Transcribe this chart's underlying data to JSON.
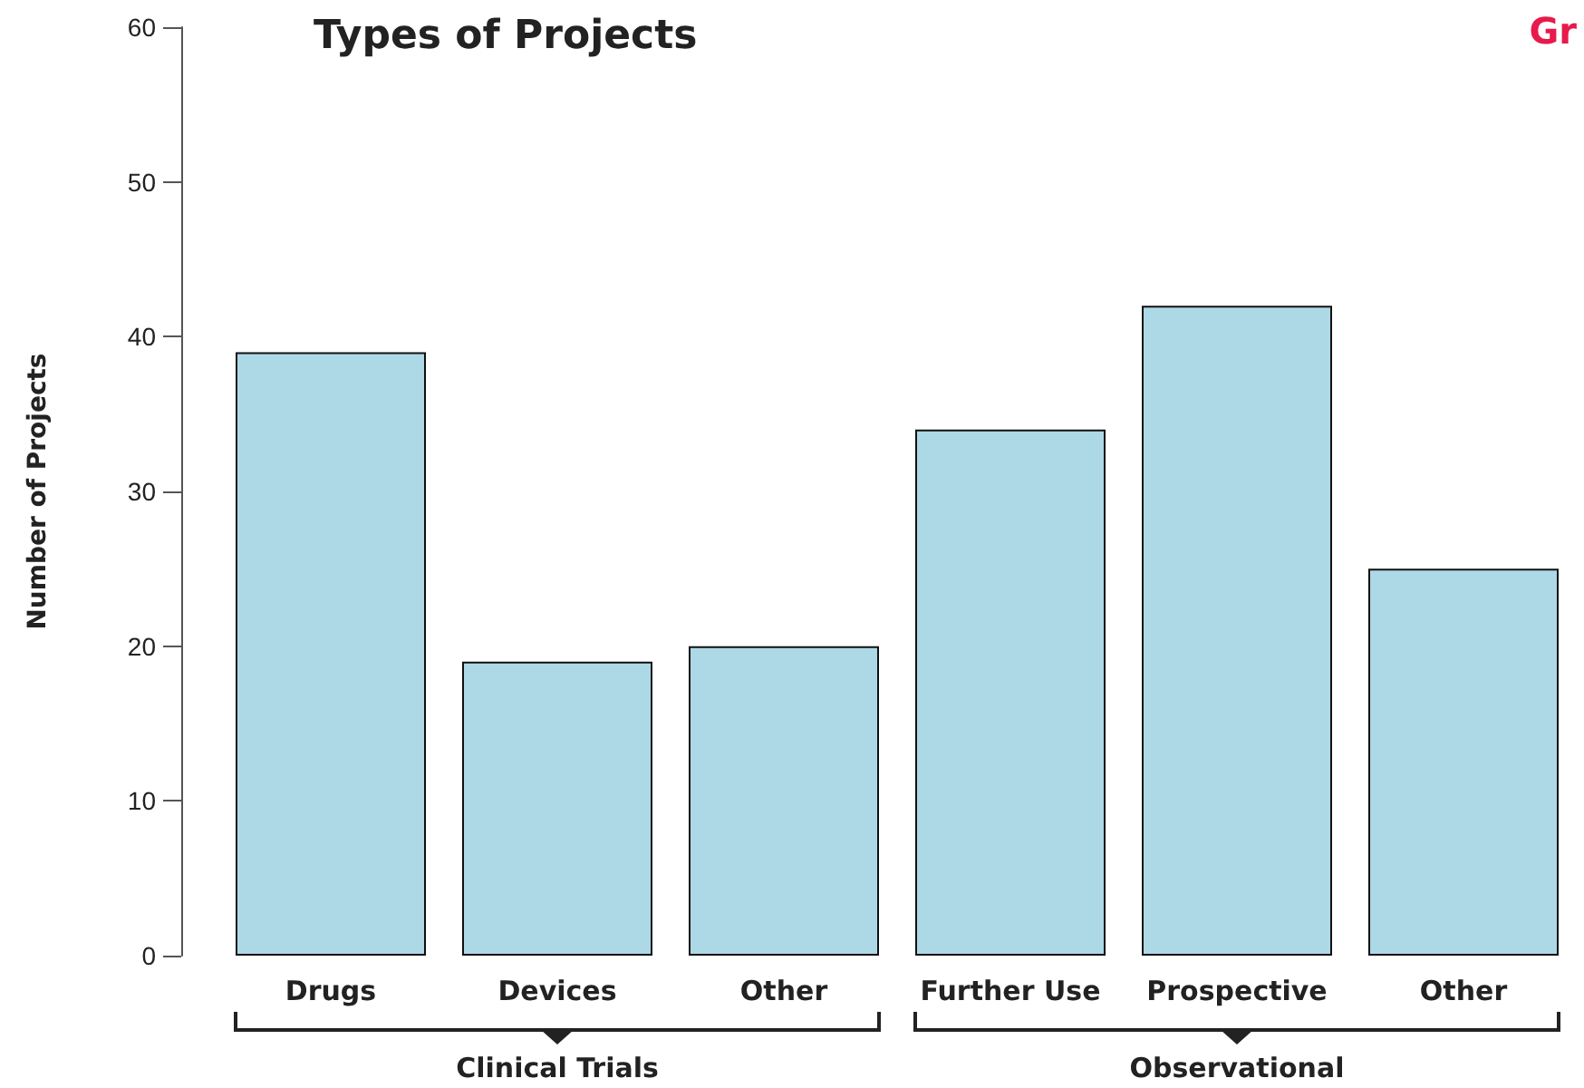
{
  "chart_data": {
    "type": "bar",
    "title": "Types of Projects",
    "subtitle": "Gr",
    "ylabel": "Number of Projects",
    "categories": [
      "Drugs",
      "Devices",
      "Other",
      "Further Use",
      "Prospective",
      "Other"
    ],
    "values": [
      39,
      19,
      20,
      34,
      42,
      25
    ],
    "color": "#add8e6",
    "ylim": [
      0,
      60
    ],
    "yticks": [
      0,
      10,
      20,
      30,
      40,
      50,
      60
    ],
    "grid": false,
    "annotations": [
      "Clinical Trials",
      "Observational"
    ]
  }
}
